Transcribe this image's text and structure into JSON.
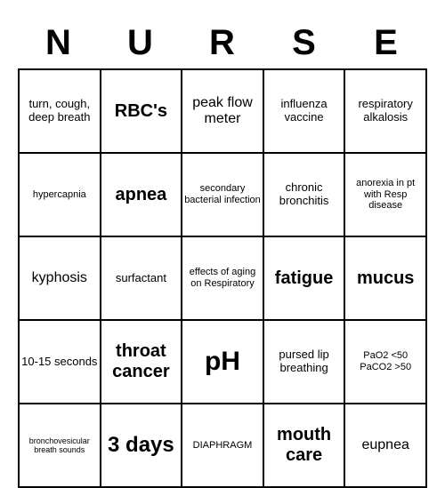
{
  "header": {
    "letters": [
      "N",
      "U",
      "R",
      "S",
      "E"
    ]
  },
  "grid": {
    "type": "table",
    "columns": 5,
    "rows_count": 5,
    "border_color": "#000000",
    "background_color": "#ffffff",
    "cells": [
      [
        {
          "text": "turn, cough, deep breath",
          "size": "sm"
        },
        {
          "text": "RBC's",
          "size": "lg"
        },
        {
          "text": "peak flow meter",
          "size": "md"
        },
        {
          "text": "influenza vaccine",
          "size": "sm"
        },
        {
          "text": "respiratory alkalosis",
          "size": "sm"
        }
      ],
      [
        {
          "text": "hypercapnia",
          "size": "xs"
        },
        {
          "text": "apnea",
          "size": "lg"
        },
        {
          "text": "secondary bacterial infection",
          "size": "xs"
        },
        {
          "text": "chronic bronchitis",
          "size": "sm"
        },
        {
          "text": "anorexia in pt with Resp disease",
          "size": "xs"
        }
      ],
      [
        {
          "text": "kyphosis",
          "size": "md"
        },
        {
          "text": "surfactant",
          "size": "sm"
        },
        {
          "text": "effects of aging on Respiratory",
          "size": "xs"
        },
        {
          "text": "fatigue",
          "size": "lg"
        },
        {
          "text": "mucus",
          "size": "lg"
        }
      ],
      [
        {
          "text": "10-15 seconds",
          "size": "sm"
        },
        {
          "text": "throat cancer",
          "size": "lg"
        },
        {
          "text": "pH",
          "size": "xxl"
        },
        {
          "text": "pursed lip breathing",
          "size": "sm"
        },
        {
          "text": "PaO2 <50 PaCO2 >50",
          "size": "xs"
        }
      ],
      [
        {
          "text": "bronchovesicular breath sounds",
          "size": "xxs"
        },
        {
          "text": "3 days",
          "size": "xl"
        },
        {
          "text": "DIAPHRAGM",
          "size": "xs"
        },
        {
          "text": "mouth care",
          "size": "lg"
        },
        {
          "text": "eupnea",
          "size": "md"
        }
      ]
    ]
  }
}
